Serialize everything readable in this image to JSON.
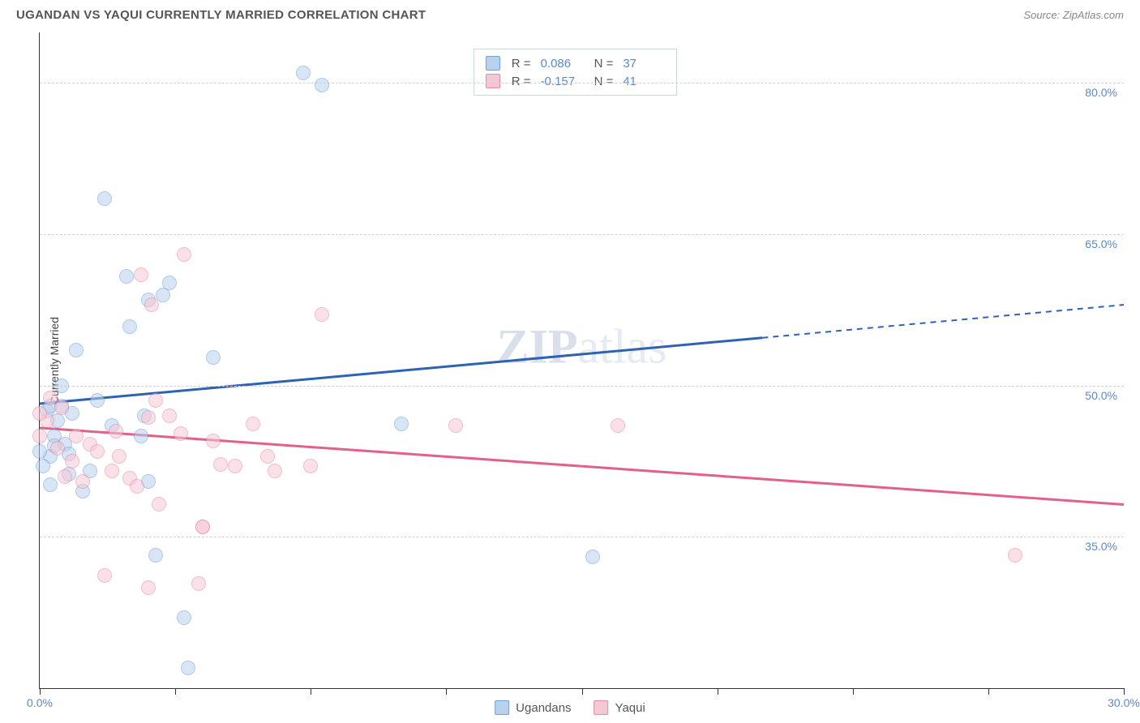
{
  "header": {
    "title": "UGANDAN VS YAQUI CURRENTLY MARRIED CORRELATION CHART",
    "source_prefix": "Source: ",
    "source_name": "ZipAtlas.com"
  },
  "watermark": {
    "bold": "ZIP",
    "rest": "atlas"
  },
  "chart": {
    "type": "scatter-with-trendlines",
    "y_axis_label": "Currently Married",
    "xlim": [
      0,
      30
    ],
    "ylim": [
      20,
      85
    ],
    "x_ticks": [
      0,
      3.75,
      7.5,
      11.25,
      15,
      18.75,
      22.5,
      26.25,
      30
    ],
    "x_tick_labels": {
      "0": "0.0%",
      "30": "30.0%"
    },
    "y_gridlines": [
      35,
      50,
      65,
      80
    ],
    "y_tick_labels": {
      "35": "35.0%",
      "50": "50.0%",
      "65": "65.0%",
      "80": "80.0%"
    },
    "background_color": "#ffffff",
    "grid_color": "#d0d0d0",
    "marker_radius": 9,
    "marker_opacity": 0.55,
    "series": [
      {
        "key": "ugandans",
        "label": "Ugandans",
        "fill_color": "#b8d1ee",
        "stroke_color": "#6fa0d8",
        "line_color": "#2e63b3",
        "R": "0.086",
        "N": "37",
        "trend": {
          "x1": 0,
          "y1": 48.2,
          "x2": 30,
          "y2": 58.0,
          "solid_until_x": 20.0
        },
        "points": [
          [
            7.3,
            81.0
          ],
          [
            7.8,
            79.8
          ],
          [
            1.8,
            68.5
          ],
          [
            2.4,
            60.8
          ],
          [
            3.6,
            60.2
          ],
          [
            3.4,
            59.0
          ],
          [
            2.5,
            55.8
          ],
          [
            4.8,
            52.8
          ],
          [
            1.0,
            53.5
          ],
          [
            0.2,
            47.5
          ],
          [
            0.3,
            48.0
          ],
          [
            0.6,
            48.0
          ],
          [
            0.4,
            45.0
          ],
          [
            0.7,
            44.2
          ],
          [
            0.3,
            43.0
          ],
          [
            0.1,
            42.0
          ],
          [
            0.8,
            41.2
          ],
          [
            1.4,
            41.5
          ],
          [
            0.3,
            40.2
          ],
          [
            1.2,
            39.5
          ],
          [
            3.0,
            40.5
          ],
          [
            10.0,
            46.2
          ],
          [
            2.8,
            45.0
          ],
          [
            3.2,
            33.2
          ],
          [
            4.0,
            27.0
          ],
          [
            4.1,
            22.0
          ],
          [
            15.3,
            33.0
          ],
          [
            1.6,
            48.5
          ],
          [
            0.5,
            46.5
          ],
          [
            0.9,
            47.2
          ],
          [
            2.9,
            47.0
          ],
          [
            0.6,
            50.0
          ],
          [
            0.4,
            44.0
          ],
          [
            0.0,
            43.5
          ],
          [
            0.8,
            43.2
          ],
          [
            2.0,
            46.0
          ],
          [
            3.0,
            58.5
          ]
        ]
      },
      {
        "key": "yaqui",
        "label": "Yaqui",
        "fill_color": "#f6c7d4",
        "stroke_color": "#e58aa4",
        "line_color": "#e26089",
        "R": "-0.157",
        "N": "41",
        "trend": {
          "x1": 0,
          "y1": 45.8,
          "x2": 30,
          "y2": 38.2,
          "solid_until_x": 30
        },
        "points": [
          [
            4.0,
            63.0
          ],
          [
            2.8,
            61.0
          ],
          [
            3.0,
            46.8
          ],
          [
            3.6,
            47.0
          ],
          [
            0.6,
            47.8
          ],
          [
            0.2,
            46.5
          ],
          [
            0.0,
            45.0
          ],
          [
            1.0,
            45.0
          ],
          [
            1.4,
            44.2
          ],
          [
            2.1,
            45.5
          ],
          [
            5.9,
            46.2
          ],
          [
            6.3,
            43.0
          ],
          [
            7.5,
            42.0
          ],
          [
            11.5,
            46.0
          ],
          [
            16.0,
            46.0
          ],
          [
            3.2,
            48.5
          ],
          [
            2.0,
            41.5
          ],
          [
            2.5,
            40.8
          ],
          [
            2.7,
            40.0
          ],
          [
            3.3,
            38.2
          ],
          [
            4.5,
            36.0
          ],
          [
            5.0,
            42.2
          ],
          [
            5.4,
            42.0
          ],
          [
            6.5,
            41.5
          ],
          [
            1.8,
            31.2
          ],
          [
            3.0,
            30.0
          ],
          [
            4.4,
            30.4
          ],
          [
            4.5,
            36.0
          ],
          [
            27.0,
            33.2
          ],
          [
            0.5,
            43.8
          ],
          [
            0.9,
            42.5
          ],
          [
            1.6,
            43.5
          ],
          [
            3.9,
            45.2
          ],
          [
            4.8,
            44.5
          ],
          [
            0.3,
            48.8
          ],
          [
            0.0,
            47.2
          ],
          [
            1.2,
            40.5
          ],
          [
            2.2,
            43.0
          ],
          [
            0.7,
            41.0
          ],
          [
            3.1,
            58.0
          ],
          [
            7.8,
            57.0
          ]
        ]
      }
    ]
  },
  "stats_legend": {
    "r_label": "R =",
    "n_label": "N ="
  },
  "bottom_legend": {
    "items": [
      "Ugandans",
      "Yaqui"
    ]
  }
}
